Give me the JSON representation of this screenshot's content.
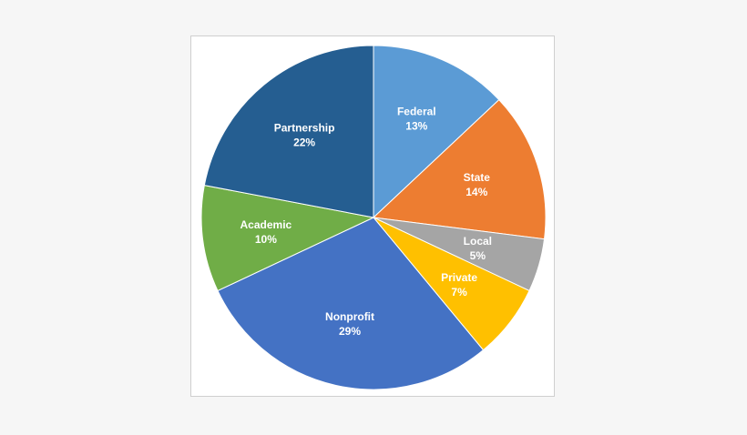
{
  "chart_data": {
    "type": "pie",
    "title": "",
    "start_angle_deg": 0,
    "direction": "clockwise",
    "slices": [
      {
        "label": "Federal",
        "value": 13,
        "value_label": "13%",
        "color": "#5b9bd5"
      },
      {
        "label": "State",
        "value": 14,
        "value_label": "14%",
        "color": "#ed7d31"
      },
      {
        "label": "Local",
        "value": 5,
        "value_label": "5%",
        "color": "#a5a5a5"
      },
      {
        "label": "Private",
        "value": 7,
        "value_label": "7%",
        "color": "#ffc000"
      },
      {
        "label": "Nonprofit",
        "value": 29,
        "value_label": "29%",
        "color": "#4472c4"
      },
      {
        "label": "Academic",
        "value": 10,
        "value_label": "10%",
        "color": "#70ad47"
      },
      {
        "label": "Partnership",
        "value": 22,
        "value_label": "22%",
        "color": "#255e91"
      }
    ],
    "legend": "none",
    "slice_border_color": "#ffffff"
  }
}
